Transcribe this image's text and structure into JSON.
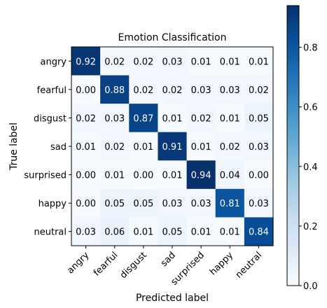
{
  "chart_data": {
    "type": "heatmap",
    "title": "Emotion Classification",
    "xlabel": "Predicted label",
    "ylabel": "True label",
    "x_categories": [
      "angry",
      "fearful",
      "disgust",
      "sad",
      "surprised",
      "happy",
      "neutral"
    ],
    "y_categories": [
      "angry",
      "fearful",
      "disgust",
      "sad",
      "surprised",
      "happy",
      "neutral"
    ],
    "matrix": [
      [
        0.92,
        0.02,
        0.02,
        0.03,
        0.01,
        0.01,
        0.01
      ],
      [
        0.0,
        0.88,
        0.02,
        0.02,
        0.03,
        0.03,
        0.02
      ],
      [
        0.02,
        0.03,
        0.87,
        0.01,
        0.02,
        0.01,
        0.05
      ],
      [
        0.01,
        0.02,
        0.01,
        0.91,
        0.01,
        0.02,
        0.03
      ],
      [
        0.0,
        0.01,
        0.0,
        0.01,
        0.94,
        0.04,
        0.0
      ],
      [
        0.0,
        0.05,
        0.05,
        0.03,
        0.03,
        0.81,
        0.03
      ],
      [
        0.03,
        0.06,
        0.01,
        0.05,
        0.01,
        0.01,
        0.84
      ]
    ],
    "cell_labels": [
      [
        "0.92",
        "0.02",
        "0.02",
        "0.03",
        "0.01",
        "0.01",
        "0.01"
      ],
      [
        "0.00",
        "0.88",
        "0.02",
        "0.02",
        "0.03",
        "0.03",
        "0.02"
      ],
      [
        "0.02",
        "0.03",
        "0.87",
        "0.01",
        "0.02",
        "0.01",
        "0.05"
      ],
      [
        "0.01",
        "0.02",
        "0.01",
        "0.91",
        "0.01",
        "0.02",
        "0.03"
      ],
      [
        "0.00",
        "0.01",
        "0.00",
        "0.01",
        "0.94",
        "0.04",
        "0.00"
      ],
      [
        "0.00",
        "0.05",
        "0.05",
        "0.03",
        "0.03",
        "0.81",
        "0.03"
      ],
      [
        "0.03",
        "0.06",
        "0.01",
        "0.05",
        "0.01",
        "0.01",
        "0.84"
      ]
    ],
    "colorbar": {
      "range": [
        0.0,
        0.94
      ],
      "ticks": [
        0.0,
        0.2,
        0.4,
        0.6,
        0.8
      ],
      "tick_labels": [
        "0.0",
        "0.2",
        "0.4",
        "0.6",
        "0.8"
      ],
      "colormap": "Blues"
    },
    "grid": false
  }
}
